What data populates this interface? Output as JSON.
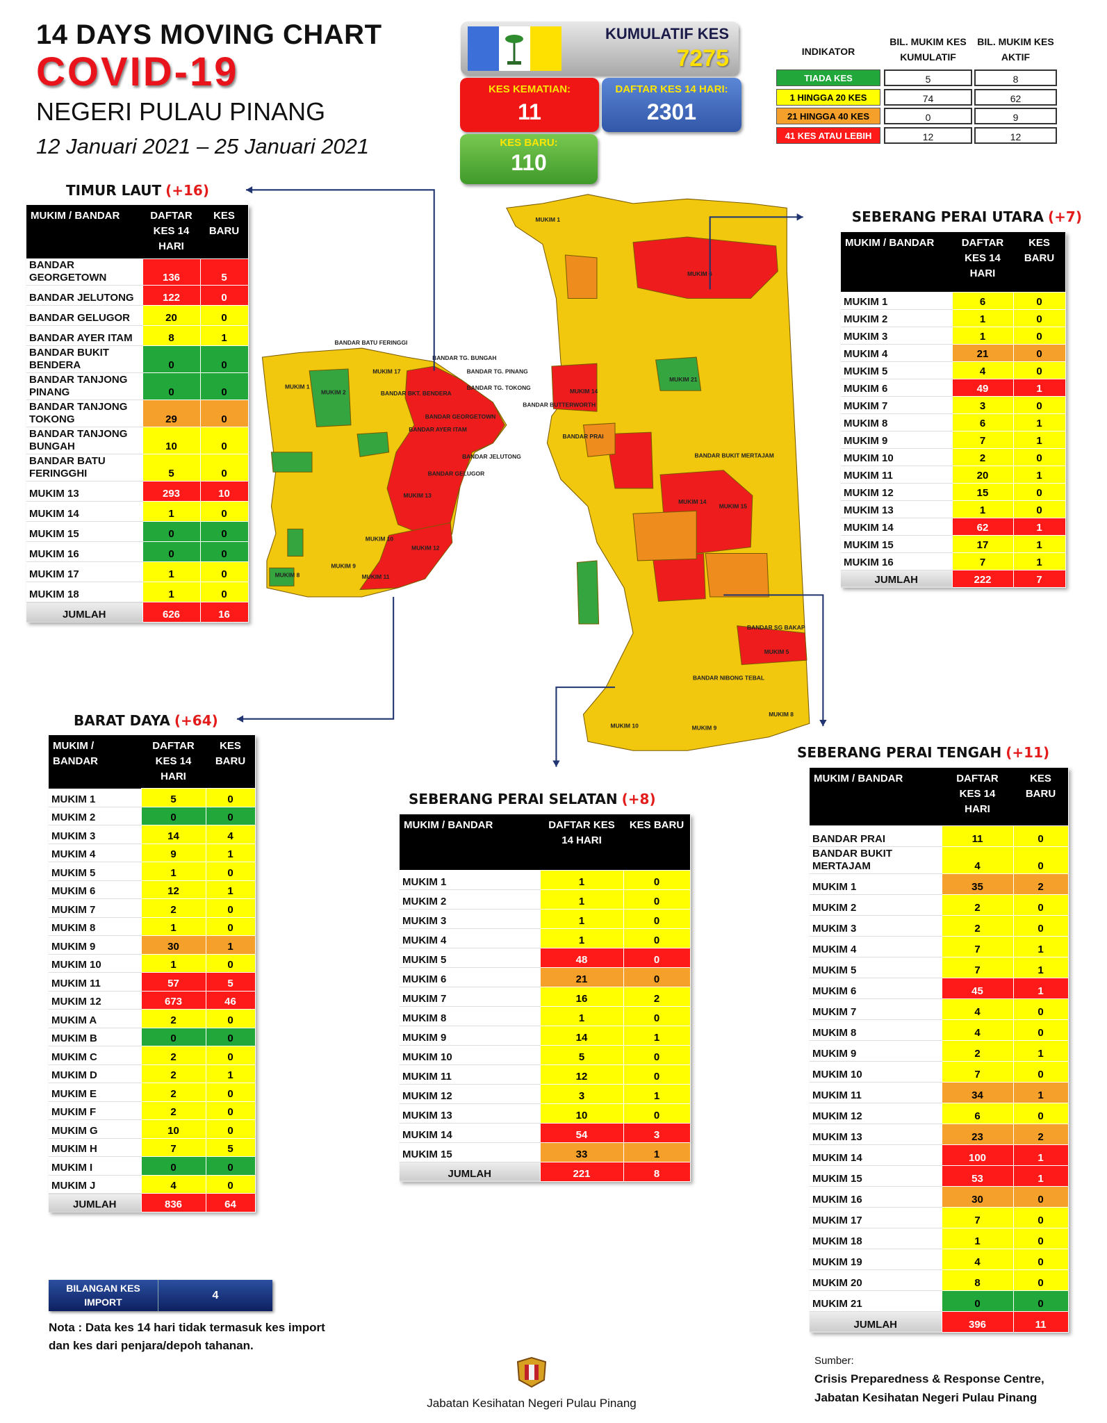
{
  "header": {
    "line1": "14  DAYS MOVING CHART",
    "title": "COVID-19",
    "region": "NEGERI PULAU PINANG",
    "period": "12 Januari 2021 – 25 Januari 2021"
  },
  "summary": {
    "cumulative": {
      "label": "KUMULATIF KES",
      "value": 7275
    },
    "deaths": {
      "label": "KES KEMATIAN:",
      "value": 11
    },
    "cases_14d": {
      "label": "DAFTAR KES 14 HARI:",
      "value": 2301
    },
    "new_cases": {
      "label": "KES BARU:",
      "value": 110
    }
  },
  "indicator": {
    "headers": [
      "INDIKATOR",
      "BIL. MUKIM KES KUMULATIF",
      "BIL. MUKIM KES AKTIF"
    ],
    "rows": [
      {
        "label": "TIADA KES",
        "color": "#22a83a",
        "cumulative": 5,
        "active": 8
      },
      {
        "label": "1 HINGGA 20 KES",
        "color": "#ffff00",
        "cumulative": 74,
        "active": 62
      },
      {
        "label": "21 HINGGA 40 KES",
        "color": "#f5a02a",
        "cumulative": 0,
        "active": 9
      },
      {
        "label": "41 KES ATAU LEBIH",
        "color": "#ff1a1a",
        "cumulative": 12,
        "active": 12
      }
    ]
  },
  "districts": [
    {
      "name": "TIMUR LAUT",
      "change": "(+16)",
      "headers": [
        "MUKIM / BANDAR",
        "DAFTAR KES 14 HARI",
        "KES BARU"
      ],
      "rows": [
        [
          "BANDAR GEORGETOWN",
          136,
          5
        ],
        [
          "BANDAR JELUTONG",
          122,
          0
        ],
        [
          "BANDAR GELUGOR",
          20,
          0
        ],
        [
          "BANDAR AYER ITAM",
          8,
          1
        ],
        [
          "BANDAR BUKIT BENDERA",
          0,
          0
        ],
        [
          "BANDAR TANJONG PINANG",
          0,
          0
        ],
        [
          "BANDAR TANJONG TOKONG",
          29,
          0
        ],
        [
          "BANDAR TANJONG BUNGAH",
          10,
          0
        ],
        [
          "BANDAR BATU FERINGGHI",
          5,
          0
        ],
        [
          "MUKIM 13",
          293,
          10
        ],
        [
          "MUKIM 14",
          1,
          0
        ],
        [
          "MUKIM 15",
          0,
          0
        ],
        [
          "MUKIM 16",
          0,
          0
        ],
        [
          "MUKIM 17",
          1,
          0
        ],
        [
          "MUKIM 18",
          1,
          0
        ]
      ],
      "total": [
        "JUMLAH",
        626,
        16
      ]
    },
    {
      "name": "SEBERANG PERAI UTARA",
      "change": "(+7)",
      "headers": [
        "MUKIM / BANDAR",
        "DAFTAR KES 14 HARI",
        "KES BARU"
      ],
      "rows": [
        [
          "MUKIM 1",
          6,
          0
        ],
        [
          "MUKIM 2",
          1,
          0
        ],
        [
          "MUKIM 3",
          1,
          0
        ],
        [
          "MUKIM 4",
          21,
          0
        ],
        [
          "MUKIM 5",
          4,
          0
        ],
        [
          "MUKIM 6",
          49,
          1
        ],
        [
          "MUKIM 7",
          3,
          0
        ],
        [
          "MUKIM 8",
          6,
          1
        ],
        [
          "MUKIM 9",
          7,
          1
        ],
        [
          "MUKIM 10",
          2,
          0
        ],
        [
          "MUKIM 11",
          20,
          1
        ],
        [
          "MUKIM 12",
          15,
          0
        ],
        [
          "MUKIM 13",
          1,
          0
        ],
        [
          "MUKIM 14",
          62,
          1
        ],
        [
          "MUKIM 15",
          17,
          1
        ],
        [
          "MUKIM 16",
          7,
          1
        ]
      ],
      "total": [
        "JUMLAH",
        222,
        7
      ]
    },
    {
      "name": "BARAT DAYA",
      "change": "(+64)",
      "headers": [
        "MUKIM / BANDAR",
        "DAFTAR KES 14 HARI",
        "KES BARU"
      ],
      "rows": [
        [
          "MUKIM 1",
          5,
          0
        ],
        [
          "MUKIM 2",
          0,
          0
        ],
        [
          "MUKIM 3",
          14,
          4
        ],
        [
          "MUKIM 4",
          9,
          1
        ],
        [
          "MUKIM 5",
          1,
          0
        ],
        [
          "MUKIM 6",
          12,
          1
        ],
        [
          "MUKIM 7",
          2,
          0
        ],
        [
          "MUKIM 8",
          1,
          0
        ],
        [
          "MUKIM 9",
          30,
          1
        ],
        [
          "MUKIM 10",
          1,
          0
        ],
        [
          "MUKIM 11",
          57,
          5
        ],
        [
          "MUKIM 12",
          673,
          46
        ],
        [
          "MUKIM A",
          2,
          0
        ],
        [
          "MUKIM B",
          0,
          0
        ],
        [
          "MUKIM C",
          2,
          0
        ],
        [
          "MUKIM D",
          2,
          1
        ],
        [
          "MUKIM E",
          2,
          0
        ],
        [
          "MUKIM F",
          2,
          0
        ],
        [
          "MUKIM G",
          10,
          0
        ],
        [
          "MUKIM H",
          7,
          5
        ],
        [
          "MUKIM I",
          0,
          0
        ],
        [
          "MUKIM J",
          4,
          0
        ]
      ],
      "total": [
        "JUMLAH",
        836,
        64
      ]
    },
    {
      "name": "SEBERANG PERAI SELATAN",
      "change": "(+8)",
      "headers": [
        "MUKIM / BANDAR",
        "DAFTAR KES 14 HARI",
        "KES BARU"
      ],
      "rows": [
        [
          "MUKIM 1",
          1,
          0
        ],
        [
          "MUKIM 2",
          1,
          0
        ],
        [
          "MUKIM 3",
          1,
          0
        ],
        [
          "MUKIM 4",
          1,
          0
        ],
        [
          "MUKIM 5",
          48,
          0
        ],
        [
          "MUKIM 6",
          21,
          0
        ],
        [
          "MUKIM 7",
          16,
          2
        ],
        [
          "MUKIM 8",
          1,
          0
        ],
        [
          "MUKIM 9",
          14,
          1
        ],
        [
          "MUKIM 10",
          5,
          0
        ],
        [
          "MUKIM 11",
          12,
          0
        ],
        [
          "MUKIM 12",
          3,
          1
        ],
        [
          "MUKIM 13",
          10,
          0
        ],
        [
          "MUKIM 14",
          54,
          3
        ],
        [
          "MUKIM 15",
          33,
          1
        ]
      ],
      "total": [
        "JUMLAH",
        221,
        8
      ]
    },
    {
      "name": "SEBERANG PERAI TENGAH",
      "change": "(+11)",
      "headers": [
        "MUKIM / BANDAR",
        "DAFTAR KES 14 HARI",
        "KES BARU"
      ],
      "rows": [
        [
          "BANDAR PRAI",
          11,
          0
        ],
        [
          "BANDAR BUKIT MERTAJAM",
          4,
          0
        ],
        [
          "MUKIM 1",
          35,
          2
        ],
        [
          "MUKIM 2",
          2,
          0
        ],
        [
          "MUKIM 3",
          2,
          0
        ],
        [
          "MUKIM 4",
          7,
          1
        ],
        [
          "MUKIM 5",
          7,
          1
        ],
        [
          "MUKIM 6",
          45,
          1
        ],
        [
          "MUKIM 7",
          4,
          0
        ],
        [
          "MUKIM 8",
          4,
          0
        ],
        [
          "MUKIM 9",
          2,
          1
        ],
        [
          "MUKIM 10",
          7,
          0
        ],
        [
          "MUKIM 11",
          34,
          1
        ],
        [
          "MUKIM 12",
          6,
          0
        ],
        [
          "MUKIM 13",
          23,
          2
        ],
        [
          "MUKIM 14",
          100,
          1
        ],
        [
          "MUKIM 15",
          53,
          1
        ],
        [
          "MUKIM 16",
          30,
          0
        ],
        [
          "MUKIM 17",
          7,
          0
        ],
        [
          "MUKIM 18",
          1,
          0
        ],
        [
          "MUKIM 19",
          4,
          0
        ],
        [
          "MUKIM 20",
          8,
          0
        ],
        [
          "MUKIM 21",
          0,
          0
        ]
      ],
      "total": [
        "JUMLAH",
        396,
        11
      ]
    }
  ],
  "map": {
    "labels": [
      "BANDAR BATU FERINGGI",
      "BANDAR TG. BUNGAH",
      "BANDAR TG. PINANG",
      "BANDAR TG. TOKONG",
      "BANDAR BKT. BENDERA",
      "BANDAR GEORGETOWN",
      "BANDAR AYER ITAM",
      "BANDAR JELUTONG",
      "BANDAR GELUGOR",
      "MUKIM 1",
      "MUKIM 2",
      "MUKIM 17",
      "MUKIM 13",
      "MUKIM 12",
      "MUKIM 11",
      "MUKIM 10",
      "MUKIM 9",
      "MUKIM 8",
      "BANDAR BUTTERWORTH",
      "BANDAR PRAI",
      "BANDAR BUKIT MERTAJAM",
      "BANDAR SG BAKAP",
      "BANDAR NIBONG TEBAL",
      "MUKIM 1",
      "MUKIM 6",
      "MUKIM 14",
      "MUKIM 21",
      "MUKIM 14",
      "MUKIM 15",
      "MUKIM 5",
      "MUKIM 10",
      "MUKIM 9",
      "MUKIM 8"
    ]
  },
  "import": {
    "label": "BILANGAN KES IMPORT",
    "value": 4
  },
  "note": "Nota : Data kes 14 hari tidak termasuk kes import dan kes dari penjara/depoh tahanan.",
  "footer": {
    "agency": "Jabatan Kesihatan Negeri Pulau Pinang",
    "source_label": "Sumber:",
    "source_lines": [
      "Crisis Preparedness & Response Centre,",
      "Jabatan Kesihatan Negeri Pulau Pinang"
    ]
  }
}
